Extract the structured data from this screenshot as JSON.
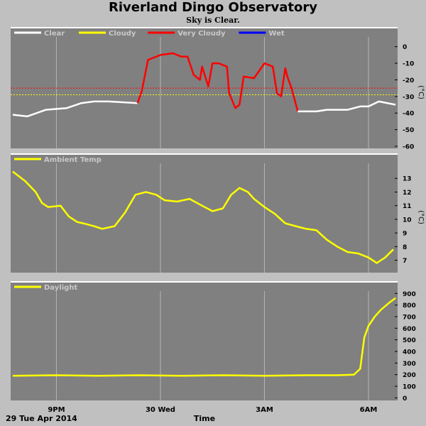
{
  "header": {
    "title": "Riverland Dingo Observatory",
    "subtitle": "Sky is Clear."
  },
  "footer": {
    "date_label": "29 Tue Apr 2014",
    "time_label": "Time"
  },
  "colors": {
    "panel": "#808080",
    "grid": "#b4b4b4",
    "clear": "#ffffff",
    "cloudy": "#ffff00",
    "very_cloudy": "#ff0000",
    "wet": "#0000ff"
  },
  "chart_data": [
    {
      "type": "line",
      "name": "sky",
      "legend": [
        {
          "label": "Clear",
          "color": "#ffffff"
        },
        {
          "label": "Cloudy",
          "color": "#ffff00"
        },
        {
          "label": "Very Cloudy",
          "color": "#ff0000"
        },
        {
          "label": "Wet",
          "color": "#0000ff"
        }
      ],
      "ylabel": "(°C)",
      "ylim": [
        -60,
        5
      ],
      "yticks": [
        "0",
        "-10",
        "-20",
        "-30",
        "-40",
        "-50",
        "-60"
      ],
      "ytick_values": [
        0,
        -10,
        -20,
        -30,
        -40,
        -50,
        -60
      ],
      "thresholds": [
        {
          "value": -25,
          "color": "#ff0000"
        },
        {
          "value": -29,
          "color": "#ffff00"
        }
      ],
      "x_hours": [
        -0.1,
        0.6,
        1.5,
        2.5,
        3.2,
        3.8,
        4.5,
        5.9,
        6.1,
        6.4,
        7.0,
        7.6,
        8.0,
        8.3,
        8.6,
        8.9,
        9.0,
        9.3,
        9.5,
        9.8,
        10.2,
        10.3,
        10.6,
        10.8,
        11.0,
        11.5,
        12.0,
        12.4,
        12.6,
        12.8,
        13.0,
        13.1,
        13.3,
        13.6,
        14.0,
        14.5,
        15.0,
        16.0,
        16.6,
        17.0,
        17.5,
        18.3
      ],
      "values": [
        -41,
        -42,
        -38,
        -37,
        -34,
        -33,
        -33,
        -34,
        -27,
        -8,
        -5,
        -4,
        -6,
        -6,
        -17,
        -20,
        -12,
        -24,
        -10,
        -10,
        -12,
        -28,
        -37,
        -35,
        -18,
        -19,
        -10,
        -12,
        -28,
        -30,
        -13,
        -18,
        -25,
        -39,
        -39,
        -39,
        -38,
        -38,
        -36,
        -36,
        -33,
        -35
      ],
      "segments": [
        {
          "color": "#ffffff",
          "from": 0,
          "to": 7
        },
        {
          "color": "#ff0000",
          "from": 7,
          "to": 33
        },
        {
          "color": "#ffffff",
          "from": 33,
          "to": 41
        }
      ]
    },
    {
      "type": "line",
      "name": "ambient",
      "legend": [
        {
          "label": "Ambient Temp",
          "color": "#ffff00"
        }
      ],
      "ylabel": "(°C)",
      "ylim": [
        6.3,
        14.0
      ],
      "yticks": [
        "13",
        "12",
        "11",
        "10",
        "9",
        "8",
        "7"
      ],
      "ytick_values": [
        13,
        12,
        11,
        10,
        9,
        8,
        7
      ],
      "x_hours": [
        -0.1,
        0.5,
        1.0,
        1.3,
        1.6,
        2.2,
        2.6,
        3.0,
        3.3,
        3.8,
        4.2,
        4.8,
        5.3,
        5.8,
        6.3,
        6.8,
        7.2,
        7.8,
        8.4,
        9.0,
        9.5,
        10.0,
        10.4,
        10.8,
        11.2,
        11.5,
        12.0,
        12.5,
        13.0,
        13.5,
        14.0,
        14.5,
        15.0,
        15.5,
        16.0,
        16.5,
        17.0,
        17.4,
        17.8,
        18.2
      ],
      "values": [
        13.5,
        12.8,
        12.0,
        11.2,
        10.9,
        11.0,
        10.2,
        9.8,
        9.7,
        9.5,
        9.3,
        9.5,
        10.5,
        11.8,
        12.0,
        11.8,
        11.4,
        11.3,
        11.5,
        11.0,
        10.6,
        10.8,
        11.8,
        12.3,
        12.0,
        11.5,
        10.9,
        10.4,
        9.7,
        9.5,
        9.3,
        9.2,
        8.5,
        8.0,
        7.6,
        7.5,
        7.2,
        6.8,
        7.2,
        7.8
      ]
    },
    {
      "type": "line",
      "name": "daylight",
      "legend": [
        {
          "label": "Daylight",
          "color": "#ffff00"
        }
      ],
      "ylim": [
        -10,
        920
      ],
      "yticks": [
        "900",
        "800",
        "700",
        "600",
        "500",
        "400",
        "300",
        "200",
        "100",
        "0"
      ],
      "ytick_values": [
        900,
        800,
        700,
        600,
        500,
        400,
        300,
        200,
        100,
        0
      ],
      "x_hours": [
        -0.1,
        2.0,
        4.0,
        6.0,
        8.0,
        10.0,
        12.0,
        14.0,
        15.5,
        16.3,
        16.6,
        16.8,
        17.0,
        17.3,
        17.6,
        18.0,
        18.3
      ],
      "values": [
        190,
        195,
        190,
        195,
        190,
        195,
        190,
        195,
        195,
        200,
        250,
        520,
        620,
        700,
        760,
        820,
        860
      ]
    }
  ],
  "x_axis": {
    "min_hour": -0.2,
    "max_hour": 18.4,
    "grid_hours": [
      2,
      7,
      12,
      17
    ],
    "labels": [
      {
        "text": "9PM",
        "hour": 2
      },
      {
        "text": "30 Wed",
        "hour": 7
      },
      {
        "text": "3AM",
        "hour": 12
      },
      {
        "text": "6AM",
        "hour": 17
      }
    ]
  }
}
